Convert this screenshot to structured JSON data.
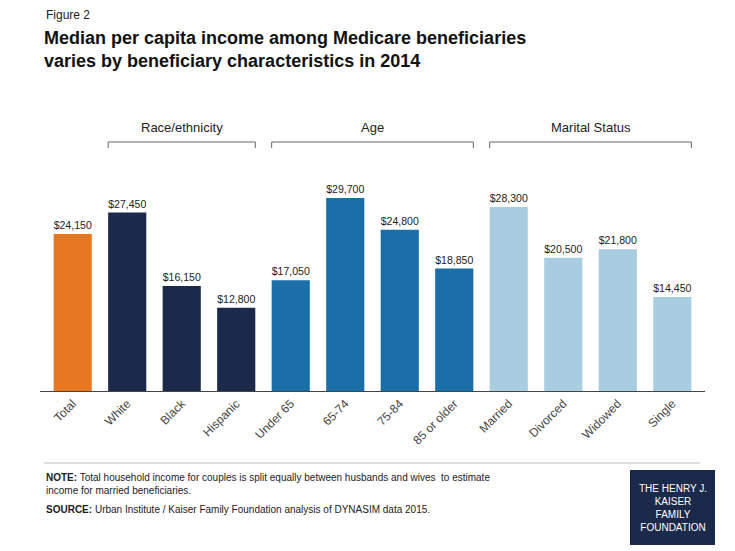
{
  "chart_data": {
    "type": "bar",
    "subtitle": "Figure 2",
    "title": "Median per capita income among Medicare beneficiaries\nvaries by beneficiary characteristics in 2014",
    "categories": [
      "Total",
      "White",
      "Black",
      "Hispanic",
      "Under 65",
      "65-74",
      "75-84",
      "85 or older",
      "Married",
      "Divorced",
      "Widowed",
      "Single"
    ],
    "values": [
      24150,
      27450,
      16150,
      12800,
      17050,
      29700,
      24800,
      18850,
      28300,
      20500,
      21800,
      14450
    ],
    "value_labels": [
      "$24,150",
      "$27,450",
      "$16,150",
      "$12,800",
      "$17,050",
      "$29,700",
      "$24,800",
      "$18,850",
      "$28,300",
      "$20,500",
      "$21,800",
      "$14,450"
    ],
    "colors": [
      "#E87722",
      "#1B2A4A",
      "#1B2A4A",
      "#1B2A4A",
      "#1B6FA8",
      "#1B6FA8",
      "#1B6FA8",
      "#1B6FA8",
      "#A8CDE0",
      "#A8CDE0",
      "#A8CDE0",
      "#A8CDE0"
    ],
    "data_labels": true,
    "ylim": [
      0,
      34000
    ],
    "tick_labels": "x",
    "grid": false,
    "annotations": [
      {
        "text": "Race/ethnicity",
        "span": [
          "White",
          "Hispanic"
        ]
      },
      {
        "text": "Age",
        "span": [
          "Under 65",
          "85 or older"
        ]
      },
      {
        "text": "Marital Status",
        "span": [
          "Married",
          "Single"
        ]
      },
      {
        "label": "NOTE:",
        "text": "Total household income for couples is split equally between husbands and wives  to estimate income for married beneficiaries."
      },
      {
        "label": "SOURCE:",
        "text": "Urban Institute / Kaiser Family Foundation analysis of DYNASIM data 2015."
      },
      {
        "text": "THE HENRY J.\nKAISER\nFAMILY\nFOUNDATION",
        "color": "#1B2A4A"
      }
    ]
  }
}
